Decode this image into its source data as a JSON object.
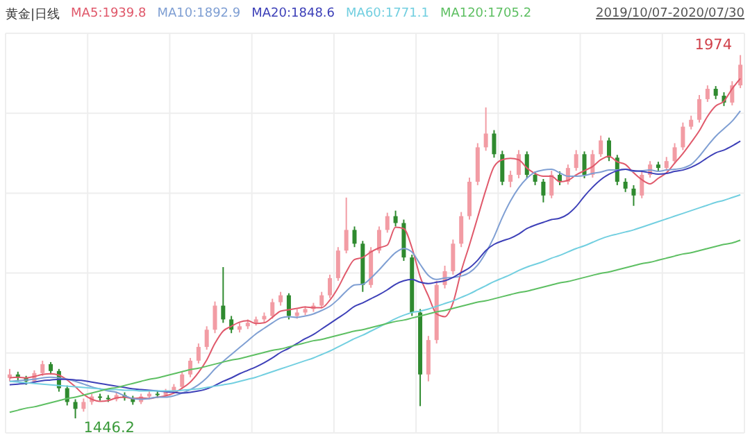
{
  "chart_data": {
    "type": "candlestick",
    "title": "黄金|日线",
    "subtitle": "2019/10/07-2020/07/30",
    "legend": "top left",
    "grid": true,
    "tick_labels": false,
    "colors": [
      "#f29ca4",
      "#2f8a2f"
    ],
    "categories": [
      null,
      null,
      null,
      null,
      null,
      null,
      null,
      null,
      null,
      null,
      null,
      null,
      null,
      null,
      null,
      null,
      null,
      null,
      null,
      null,
      null,
      null,
      null,
      null,
      null,
      null,
      null,
      null,
      null,
      null,
      null,
      null,
      null,
      null,
      null,
      null,
      null,
      null,
      null,
      null,
      null,
      null,
      null,
      null,
      null,
      null,
      null,
      null,
      null,
      null,
      null,
      null,
      null,
      null,
      null,
      null,
      null,
      null,
      null,
      null,
      null,
      null,
      null,
      null,
      null,
      null,
      null,
      null,
      null,
      null,
      null,
      null,
      null,
      null,
      null,
      null,
      null,
      null,
      null,
      null,
      null,
      null,
      null,
      null,
      null,
      null,
      null,
      null,
      null,
      null
    ],
    "annotations": [
      "1446.2",
      "1974"
    ],
    "series": [
      {
        "ohlc": [
          [
            1505,
            1518,
            1500,
            1510
          ],
          [
            1510,
            1514,
            1500,
            1505
          ],
          [
            1505,
            1508,
            1495,
            1500
          ],
          [
            1500,
            1516,
            1497,
            1512
          ],
          [
            1512,
            1530,
            1508,
            1525
          ],
          [
            1525,
            1528,
            1510,
            1515
          ],
          [
            1515,
            1518,
            1485,
            1490
          ],
          [
            1490,
            1494,
            1465,
            1470
          ],
          [
            1470,
            1474,
            1446.2,
            1460
          ],
          [
            1460,
            1475,
            1456,
            1470
          ],
          [
            1470,
            1482,
            1466,
            1478
          ],
          [
            1478,
            1482,
            1472,
            1476
          ],
          [
            1476,
            1480,
            1470,
            1474
          ],
          [
            1474,
            1485,
            1471,
            1480
          ],
          [
            1480,
            1484,
            1472,
            1476
          ],
          [
            1476,
            1479,
            1466,
            1470
          ],
          [
            1470,
            1482,
            1467,
            1478
          ],
          [
            1478,
            1486,
            1474,
            1482
          ],
          [
            1482,
            1486,
            1476,
            1480
          ],
          [
            1480,
            1489,
            1477,
            1485
          ],
          [
            1485,
            1496,
            1482,
            1492
          ],
          [
            1492,
            1514,
            1489,
            1510
          ],
          [
            1510,
            1534,
            1506,
            1530
          ],
          [
            1530,
            1555,
            1526,
            1550
          ],
          [
            1550,
            1580,
            1546,
            1575
          ],
          [
            1575,
            1616,
            1570,
            1610
          ],
          [
            1610,
            1666,
            1585,
            1590
          ],
          [
            1590,
            1595,
            1570,
            1575
          ],
          [
            1575,
            1585,
            1571,
            1580
          ],
          [
            1580,
            1590,
            1576,
            1585
          ],
          [
            1585,
            1594,
            1581,
            1590
          ],
          [
            1590,
            1600,
            1586,
            1595
          ],
          [
            1595,
            1620,
            1591,
            1615
          ],
          [
            1615,
            1630,
            1610,
            1625
          ],
          [
            1625,
            1628,
            1590,
            1595
          ],
          [
            1595,
            1605,
            1591,
            1600
          ],
          [
            1600,
            1609,
            1596,
            1605
          ],
          [
            1605,
            1614,
            1601,
            1610
          ],
          [
            1610,
            1630,
            1606,
            1625
          ],
          [
            1625,
            1655,
            1621,
            1650
          ],
          [
            1650,
            1695,
            1646,
            1690
          ],
          [
            1690,
            1767,
            1686,
            1720
          ],
          [
            1720,
            1725,
            1695,
            1700
          ],
          [
            1700,
            1704,
            1630,
            1640
          ],
          [
            1640,
            1695,
            1636,
            1690
          ],
          [
            1690,
            1725,
            1686,
            1720
          ],
          [
            1720,
            1745,
            1716,
            1740
          ],
          [
            1740,
            1748,
            1725,
            1730
          ],
          [
            1730,
            1735,
            1675,
            1680
          ],
          [
            1680,
            1684,
            1595,
            1600
          ],
          [
            1600,
            1605,
            1464,
            1510
          ],
          [
            1510,
            1566,
            1500,
            1560
          ],
          [
            1560,
            1646,
            1555,
            1640
          ],
          [
            1640,
            1668,
            1635,
            1660
          ],
          [
            1660,
            1706,
            1655,
            1700
          ],
          [
            1700,
            1746,
            1695,
            1740
          ],
          [
            1740,
            1796,
            1735,
            1790
          ],
          [
            1790,
            1846,
            1785,
            1840
          ],
          [
            1840,
            1898,
            1835,
            1860
          ],
          [
            1860,
            1865,
            1825,
            1830
          ],
          [
            1830,
            1835,
            1785,
            1790
          ],
          [
            1790,
            1806,
            1782,
            1800
          ],
          [
            1800,
            1836,
            1795,
            1830
          ],
          [
            1830,
            1834,
            1795,
            1800
          ],
          [
            1800,
            1805,
            1785,
            1790
          ],
          [
            1790,
            1794,
            1760,
            1770
          ],
          [
            1770,
            1806,
            1766,
            1800
          ],
          [
            1800,
            1805,
            1785,
            1790
          ],
          [
            1790,
            1815,
            1786,
            1810
          ],
          [
            1810,
            1836,
            1806,
            1830
          ],
          [
            1830,
            1834,
            1795,
            1800
          ],
          [
            1800,
            1836,
            1796,
            1830
          ],
          [
            1830,
            1857,
            1826,
            1850
          ],
          [
            1850,
            1854,
            1820,
            1825
          ],
          [
            1825,
            1829,
            1785,
            1790
          ],
          [
            1790,
            1795,
            1775,
            1780
          ],
          [
            1780,
            1785,
            1755,
            1770
          ],
          [
            1770,
            1805,
            1766,
            1800
          ],
          [
            1800,
            1820,
            1796,
            1815
          ],
          [
            1815,
            1819,
            1805,
            1810
          ],
          [
            1810,
            1826,
            1806,
            1820
          ],
          [
            1820,
            1846,
            1816,
            1840
          ],
          [
            1840,
            1876,
            1836,
            1870
          ],
          [
            1870,
            1886,
            1866,
            1880
          ],
          [
            1880,
            1916,
            1876,
            1910
          ],
          [
            1910,
            1930,
            1906,
            1925
          ],
          [
            1925,
            1929,
            1910,
            1915
          ],
          [
            1915,
            1920,
            1900,
            1905
          ],
          [
            1905,
            1936,
            1901,
            1930
          ],
          [
            1930,
            1974,
            1926,
            1960
          ]
        ]
      },
      {
        "type": "line",
        "name": "MA5:1939.8",
        "color": "#e0596b",
        "values": [
          1505,
          1506,
          1505,
          1507,
          1510,
          1511,
          1509,
          1502,
          1492,
          1481,
          1474,
          1471,
          1472,
          1476,
          1477,
          1475,
          1476,
          1475,
          1477,
          1479,
          1483,
          1490,
          1499,
          1513,
          1531,
          1555,
          1573,
          1580,
          1586,
          1588,
          1584,
          1585,
          1593,
          1602,
          1604,
          1606,
          1608,
          1607,
          1607,
          1618,
          1636,
          1659,
          1677,
          1680,
          1688,
          1694,
          1698,
          1724,
          1722,
          1694,
          1652,
          1624,
          1598,
          1594,
          1614,
          1660,
          1698,
          1738,
          1778,
          1812,
          1822,
          1824,
          1822,
          1810,
          1802,
          1798,
          1798,
          1790,
          1792,
          1800,
          1806,
          1812,
          1822,
          1827,
          1819,
          1815,
          1803,
          1793,
          1787,
          1795,
          1803,
          1817,
          1831,
          1847,
          1864,
          1885,
          1900,
          1907,
          1925,
          1940
        ]
      },
      {
        "type": "line",
        "name": "MA10:1892.9",
        "color": "#7f9fd3",
        "values": [
          1500,
          1501,
          1502,
          1503,
          1505,
          1506,
          1505,
          1503,
          1500,
          1496,
          1492,
          1489,
          1486,
          1484,
          1479,
          1475,
          1474,
          1475,
          1477,
          1477,
          1479,
          1483,
          1488,
          1495,
          1505,
          1518,
          1529,
          1539,
          1549,
          1559,
          1569,
          1577,
          1585,
          1592,
          1594,
          1593,
          1595,
          1598,
          1603,
          1609,
          1619,
          1631,
          1640,
          1641,
          1650,
          1662,
          1675,
          1687,
          1693,
          1688,
          1670,
          1654,
          1648,
          1650,
          1651,
          1653,
          1658,
          1669,
          1687,
          1710,
          1738,
          1762,
          1781,
          1795,
          1804,
          1807,
          1808,
          1803,
          1798,
          1798,
          1799,
          1802,
          1804,
          1807,
          1807,
          1808,
          1805,
          1806,
          1807,
          1805,
          1807,
          1808,
          1810,
          1815,
          1827,
          1842,
          1856,
          1867,
          1878,
          1893
        ]
      },
      {
        "type": "line",
        "name": "MA20:1848.6",
        "color": "#3d40b8",
        "values": [
          1495,
          1496,
          1497,
          1499,
          1501,
          1502,
          1503,
          1503,
          1502,
          1501,
          1499,
          1497,
          1495,
          1493,
          1491,
          1489,
          1488,
          1487,
          1486,
          1485,
          1484,
          1483,
          1484,
          1486,
          1489,
          1494,
          1500,
          1505,
          1511,
          1516,
          1521,
          1527,
          1534,
          1542,
          1548,
          1555,
          1562,
          1568,
          1576,
          1584,
          1592,
          1600,
          1609,
          1614,
          1620,
          1626,
          1633,
          1641,
          1646,
          1648,
          1644,
          1642,
          1644,
          1646,
          1651,
          1658,
          1665,
          1676,
          1690,
          1699,
          1704,
          1708,
          1714,
          1722,
          1727,
          1731,
          1735,
          1737,
          1743,
          1754,
          1769,
          1782,
          1793,
          1801,
          1806,
          1808,
          1806,
          1805,
          1803,
          1801,
          1802,
          1805,
          1807,
          1811,
          1817,
          1825,
          1832,
          1836,
          1842,
          1849
        ]
      },
      {
        "type": "line",
        "name": "MA60:1771.1",
        "color": "#72cfe0",
        "values": [
          1500,
          1499,
          1498,
          1497,
          1496,
          1495,
          1494,
          1493,
          1492,
          1491,
          1490,
          1489,
          1488,
          1488,
          1487,
          1487,
          1486,
          1486,
          1486,
          1486,
          1486,
          1487,
          1488,
          1489,
          1491,
          1493,
          1495,
          1497,
          1500,
          1503,
          1506,
          1510,
          1514,
          1518,
          1522,
          1526,
          1530,
          1534,
          1539,
          1544,
          1550,
          1556,
          1562,
          1567,
          1573,
          1579,
          1585,
          1591,
          1596,
          1600,
          1602,
          1605,
          1609,
          1613,
          1617,
          1622,
          1627,
          1633,
          1639,
          1645,
          1650,
          1655,
          1661,
          1666,
          1670,
          1674,
          1679,
          1683,
          1688,
          1693,
          1697,
          1702,
          1707,
          1711,
          1714,
          1717,
          1720,
          1724,
          1728,
          1732,
          1736,
          1740,
          1744,
          1748,
          1752,
          1756,
          1760,
          1763,
          1767,
          1771
        ]
      },
      {
        "type": "line",
        "name": "MA120:1705.2",
        "color": "#5dbf62",
        "values": [
          1455,
          1458,
          1461,
          1463,
          1466,
          1469,
          1472,
          1475,
          1477,
          1480,
          1483,
          1486,
          1489,
          1491,
          1494,
          1497,
          1500,
          1503,
          1505,
          1508,
          1511,
          1514,
          1517,
          1519,
          1522,
          1525,
          1528,
          1531,
          1533,
          1536,
          1539,
          1542,
          1545,
          1547,
          1550,
          1553,
          1556,
          1559,
          1561,
          1564,
          1567,
          1570,
          1573,
          1575,
          1578,
          1581,
          1584,
          1587,
          1589,
          1592,
          1595,
          1598,
          1601,
          1603,
          1606,
          1609,
          1612,
          1615,
          1617,
          1620,
          1623,
          1626,
          1629,
          1631,
          1634,
          1637,
          1640,
          1643,
          1645,
          1648,
          1651,
          1654,
          1657,
          1659,
          1662,
          1665,
          1668,
          1671,
          1673,
          1676,
          1679,
          1682,
          1685,
          1687,
          1690,
          1693,
          1696,
          1699,
          1701,
          1705
        ]
      }
    ]
  }
}
